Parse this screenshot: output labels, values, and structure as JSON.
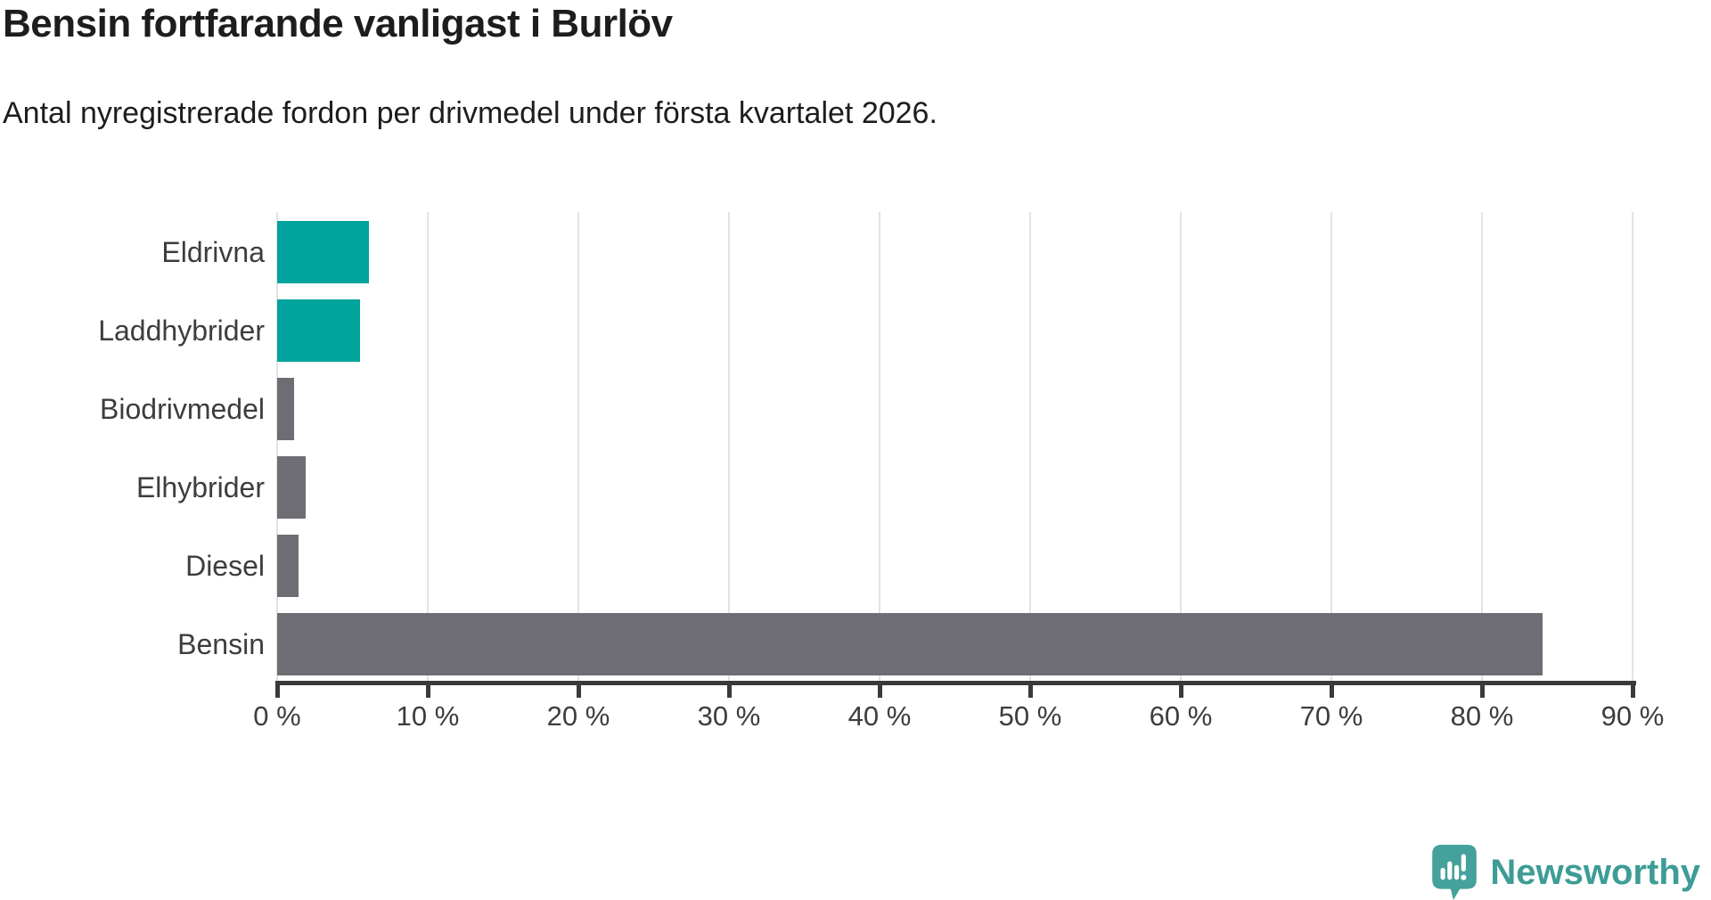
{
  "header": {
    "title": "Bensin fortfarande vanligast i Burlöv",
    "subtitle": "Antal nyregistrerade fordon per drivmedel under första kvartalet 2026."
  },
  "chart_data": {
    "type": "bar",
    "orientation": "horizontal",
    "title": "Bensin fortfarande vanligast i Burlöv",
    "subtitle": "Antal nyregistrerade fordon per drivmedel under första kvartalet 2026.",
    "categories": [
      "Eldrivna",
      "Laddhybrider",
      "Biodrivmedel",
      "Elhybrider",
      "Diesel",
      "Bensin"
    ],
    "values": [
      6.1,
      5.5,
      1.1,
      1.9,
      1.4,
      84
    ],
    "unit": "%",
    "xlim": [
      0,
      90
    ],
    "x_tick_values": [
      0,
      10,
      20,
      30,
      40,
      50,
      60,
      70,
      80,
      90
    ],
    "x_tick_labels": [
      "0 %",
      "10 %",
      "20 %",
      "30 %",
      "40 %",
      "50 %",
      "60 %",
      "70 %",
      "80 %",
      "90 %"
    ],
    "grid": true,
    "legend": false,
    "bar_colors": [
      "#00a49c",
      "#00a49c",
      "#6d6d73",
      "#6d6d73",
      "#6d6d73",
      "#6d6d73"
    ],
    "highlight_color": "#00a49c",
    "default_color": "#6d6d73",
    "gridline_color": "#e3e3e3",
    "axis_color": "#3a3a3a"
  },
  "branding": {
    "logo_text": "Newsworthy",
    "logo_color": "#3d9c96",
    "icon_color": "#45a19b",
    "icon_name": "newsworthy-speech-bubble-chart-icon"
  }
}
